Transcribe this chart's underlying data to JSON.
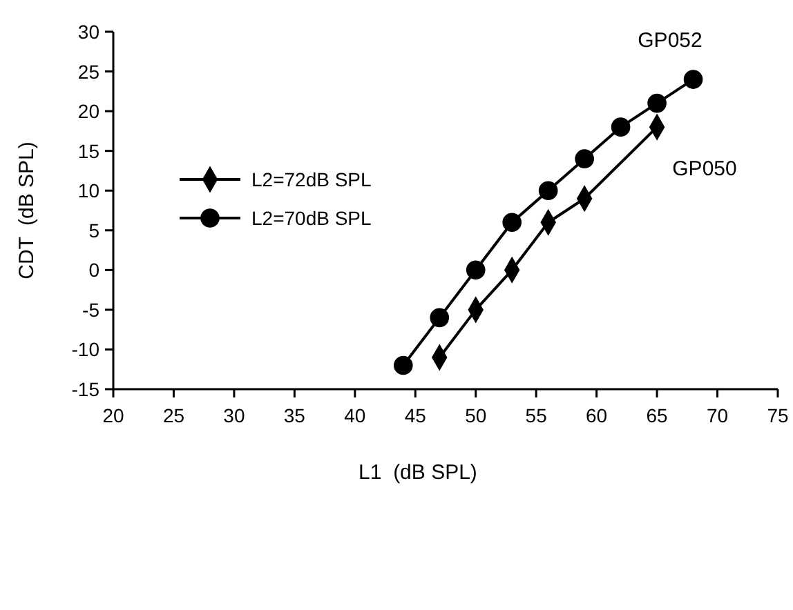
{
  "chart_data": {
    "type": "line",
    "xlabel": "L1  (dB SPL)",
    "ylabel": "CDT  (dB SPL)",
    "xlim": [
      20,
      75
    ],
    "xticks": [
      20,
      25,
      30,
      35,
      40,
      45,
      50,
      55,
      60,
      65,
      70,
      75
    ],
    "ylim": [
      -15,
      30
    ],
    "yticks": [
      -15,
      -10,
      -5,
      0,
      5,
      10,
      15,
      20,
      25,
      30
    ],
    "grid": false,
    "legend": "left",
    "line_style": "solid",
    "series": [
      {
        "name": "L2=72dB SPL",
        "color": "#000000",
        "marker": "diamond",
        "x": [
          47,
          50,
          53,
          56,
          59,
          65
        ],
        "values": [
          -11,
          -5,
          0,
          6,
          9,
          18
        ]
      },
      {
        "name": "L2=70dB SPL",
        "color": "#000000",
        "marker": "circle",
        "x": [
          44,
          47,
          50,
          53,
          56,
          59,
          62,
          65,
          68
        ],
        "values": [
          -12,
          -6,
          0,
          6,
          10,
          14,
          18,
          21,
          24
        ]
      }
    ],
    "annotations": [
      "GP052",
      "GP050"
    ]
  }
}
